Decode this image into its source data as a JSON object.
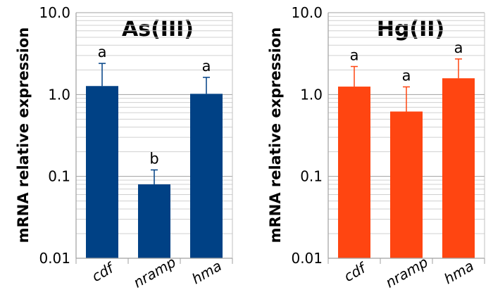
{
  "chart_data": [
    {
      "type": "bar",
      "title": "As(III)",
      "ylabel": "mRNA relative expression",
      "yscale": "log",
      "ylim": [
        0.01,
        10
      ],
      "ytick_labels": [
        "10.0",
        "1.0",
        "0.1",
        "0.01"
      ],
      "categories": [
        "cdf",
        "nramp",
        "hma"
      ],
      "values": [
        1.27,
        0.08,
        1.02
      ],
      "error_upper": [
        2.4,
        0.12,
        1.62
      ],
      "significance": [
        "a",
        "b",
        "a"
      ],
      "color": "#004185",
      "grid": true
    },
    {
      "type": "bar",
      "title": "Hg(II)",
      "ylabel": "mRNA relative expression",
      "yscale": "log",
      "ylim": [
        0.01,
        10
      ],
      "ytick_labels": [
        "10.0",
        "1.0",
        "0.1",
        "0.01"
      ],
      "categories": [
        "cdf",
        "nramp",
        "hma"
      ],
      "values": [
        1.25,
        0.62,
        1.58
      ],
      "error_upper": [
        2.2,
        1.24,
        2.72
      ],
      "significance": [
        "a",
        "a",
        "a"
      ],
      "color": "#ff4511",
      "grid": true
    }
  ]
}
